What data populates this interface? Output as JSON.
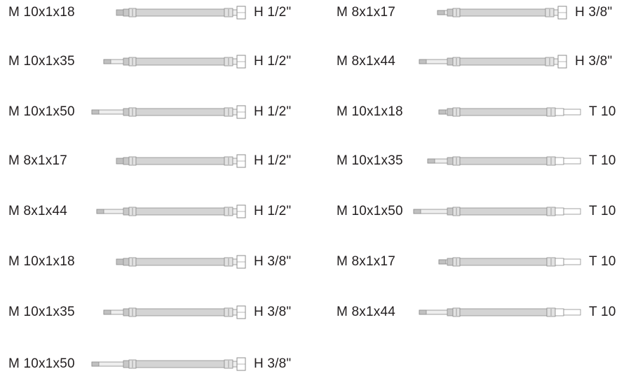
{
  "colors": {
    "text": "#231f20",
    "hose_body": "#d4d4d4",
    "hose_outline": "#8c8c8c",
    "fitting": "#c8c8c8"
  },
  "items": [
    {
      "male": "M 10x1x18",
      "female": "H 1/2\"",
      "end": "nut"
    },
    {
      "male": "M 10x1x35",
      "female": "H 1/2\"",
      "end": "nut"
    },
    {
      "male": "M 10x1x50",
      "female": "H 1/2\"",
      "end": "nut"
    },
    {
      "male": "M 8x1x17",
      "female": "H 1/2\"",
      "end": "nut"
    },
    {
      "male": "M 8x1x44",
      "female": "H 1/2\"",
      "end": "nut"
    },
    {
      "male": "M 10x1x18",
      "female": "H 3/8\"",
      "end": "nut"
    },
    {
      "male": "M 10x1x35",
      "female": "H 3/8\"",
      "end": "nut"
    },
    {
      "male": "M 10x1x50",
      "female": "H 3/8\"",
      "end": "nut"
    },
    {
      "male": "M 8x1x17",
      "female": "H 3/8\"",
      "end": "nut"
    },
    {
      "male": "M 8x1x44",
      "female": "H 3/8\"",
      "end": "nut"
    },
    {
      "male": "M 10x1x18",
      "female": "T 10",
      "end": "tube"
    },
    {
      "male": "M 10x1x35",
      "female": "T 10",
      "end": "tube"
    },
    {
      "male": "M 10x1x50",
      "female": "T 10",
      "end": "tube"
    },
    {
      "male": "M 8x1x17",
      "female": "T 10",
      "end": "tube"
    },
    {
      "male": "M 8x1x44",
      "female": "T 10",
      "end": "tube"
    }
  ]
}
